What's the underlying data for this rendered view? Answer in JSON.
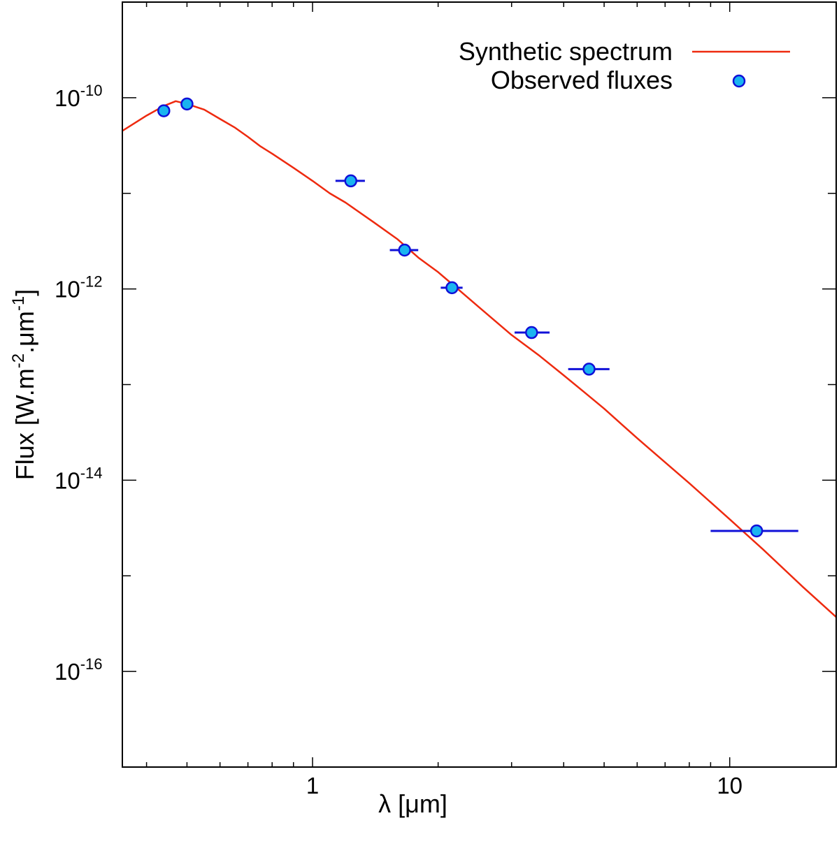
{
  "chart_data": {
    "type": "scatter",
    "xscale": "log",
    "yscale": "log",
    "xlim": [
      0.35,
      18
    ],
    "ylim": [
      1e-17,
      1e-09
    ],
    "xlabel": "λ [μm]",
    "ylabel": {
      "prefix": "Flux [W.m",
      "exp1": "-2",
      "mid": ".μm",
      "exp2": "-1",
      "suffix": "]"
    },
    "xticks": [
      {
        "value": 1,
        "label": "1"
      },
      {
        "value": 10,
        "label": "10"
      }
    ],
    "yticks": [
      {
        "value": 1e-10,
        "base": "10",
        "exp": "-10"
      },
      {
        "value": 1e-12,
        "base": "10",
        "exp": "-12"
      },
      {
        "value": 1e-14,
        "base": "10",
        "exp": "-14"
      },
      {
        "value": 1e-16,
        "base": "10",
        "exp": "-16"
      }
    ],
    "series": [
      {
        "name": "Synthetic spectrum",
        "kind": "line",
        "color": "#ee2a0f",
        "x": [
          0.35,
          0.4,
          0.44,
          0.47,
          0.5,
          0.55,
          0.6,
          0.65,
          0.7,
          0.75,
          0.8,
          0.9,
          1.0,
          1.1,
          1.2,
          1.4,
          1.6,
          1.8,
          2.0,
          2.2,
          2.5,
          3.0,
          3.5,
          4.0,
          4.5,
          5.0,
          6.0,
          8.0,
          10.0,
          12.0,
          15.0,
          18.0
        ],
        "y": [
          4.5e-11,
          6.5e-11,
          8.2e-11,
          9.2e-11,
          8.6e-11,
          7.5e-11,
          6e-11,
          4.9e-11,
          3.9e-11,
          3.1e-11,
          2.6e-11,
          1.85e-11,
          1.35e-11,
          1e-11,
          8e-12,
          5e-12,
          3.3e-12,
          2.1e-12,
          1.5e-12,
          1.05e-12,
          6.5e-13,
          3.3e-13,
          2e-13,
          1.25e-13,
          8.2e-14,
          5.6e-14,
          2.75e-14,
          9.3e-15,
          3.9e-15,
          1.9e-15,
          7.6e-16,
          3.7e-16
        ]
      },
      {
        "name": "Observed fluxes",
        "kind": "points",
        "color": "#1ab4f0",
        "edge_color": "#1010d8",
        "x": [
          0.44,
          0.5,
          1.235,
          1.662,
          2.159,
          3.35,
          4.6,
          11.6
        ],
        "y": [
          7.3e-11,
          8.6e-11,
          1.35e-11,
          2.55e-12,
          1.03e-12,
          3.5e-13,
          1.45e-13,
          2.95e-15
        ],
        "xerr_low": [
          0,
          0,
          0.1,
          0.13,
          0.13,
          0.3,
          0.5,
          2.6
        ],
        "xerr_high": [
          0,
          0,
          0.1,
          0.13,
          0.13,
          0.35,
          0.55,
          3.0
        ],
        "yerr": [
          0,
          0,
          0,
          0,
          0,
          2.5e-14,
          0,
          0
        ]
      }
    ],
    "legend": {
      "position": "top-right",
      "entries": [
        {
          "label": "Synthetic spectrum",
          "kind": "line"
        },
        {
          "label": "Observed fluxes",
          "kind": "marker"
        }
      ]
    }
  }
}
